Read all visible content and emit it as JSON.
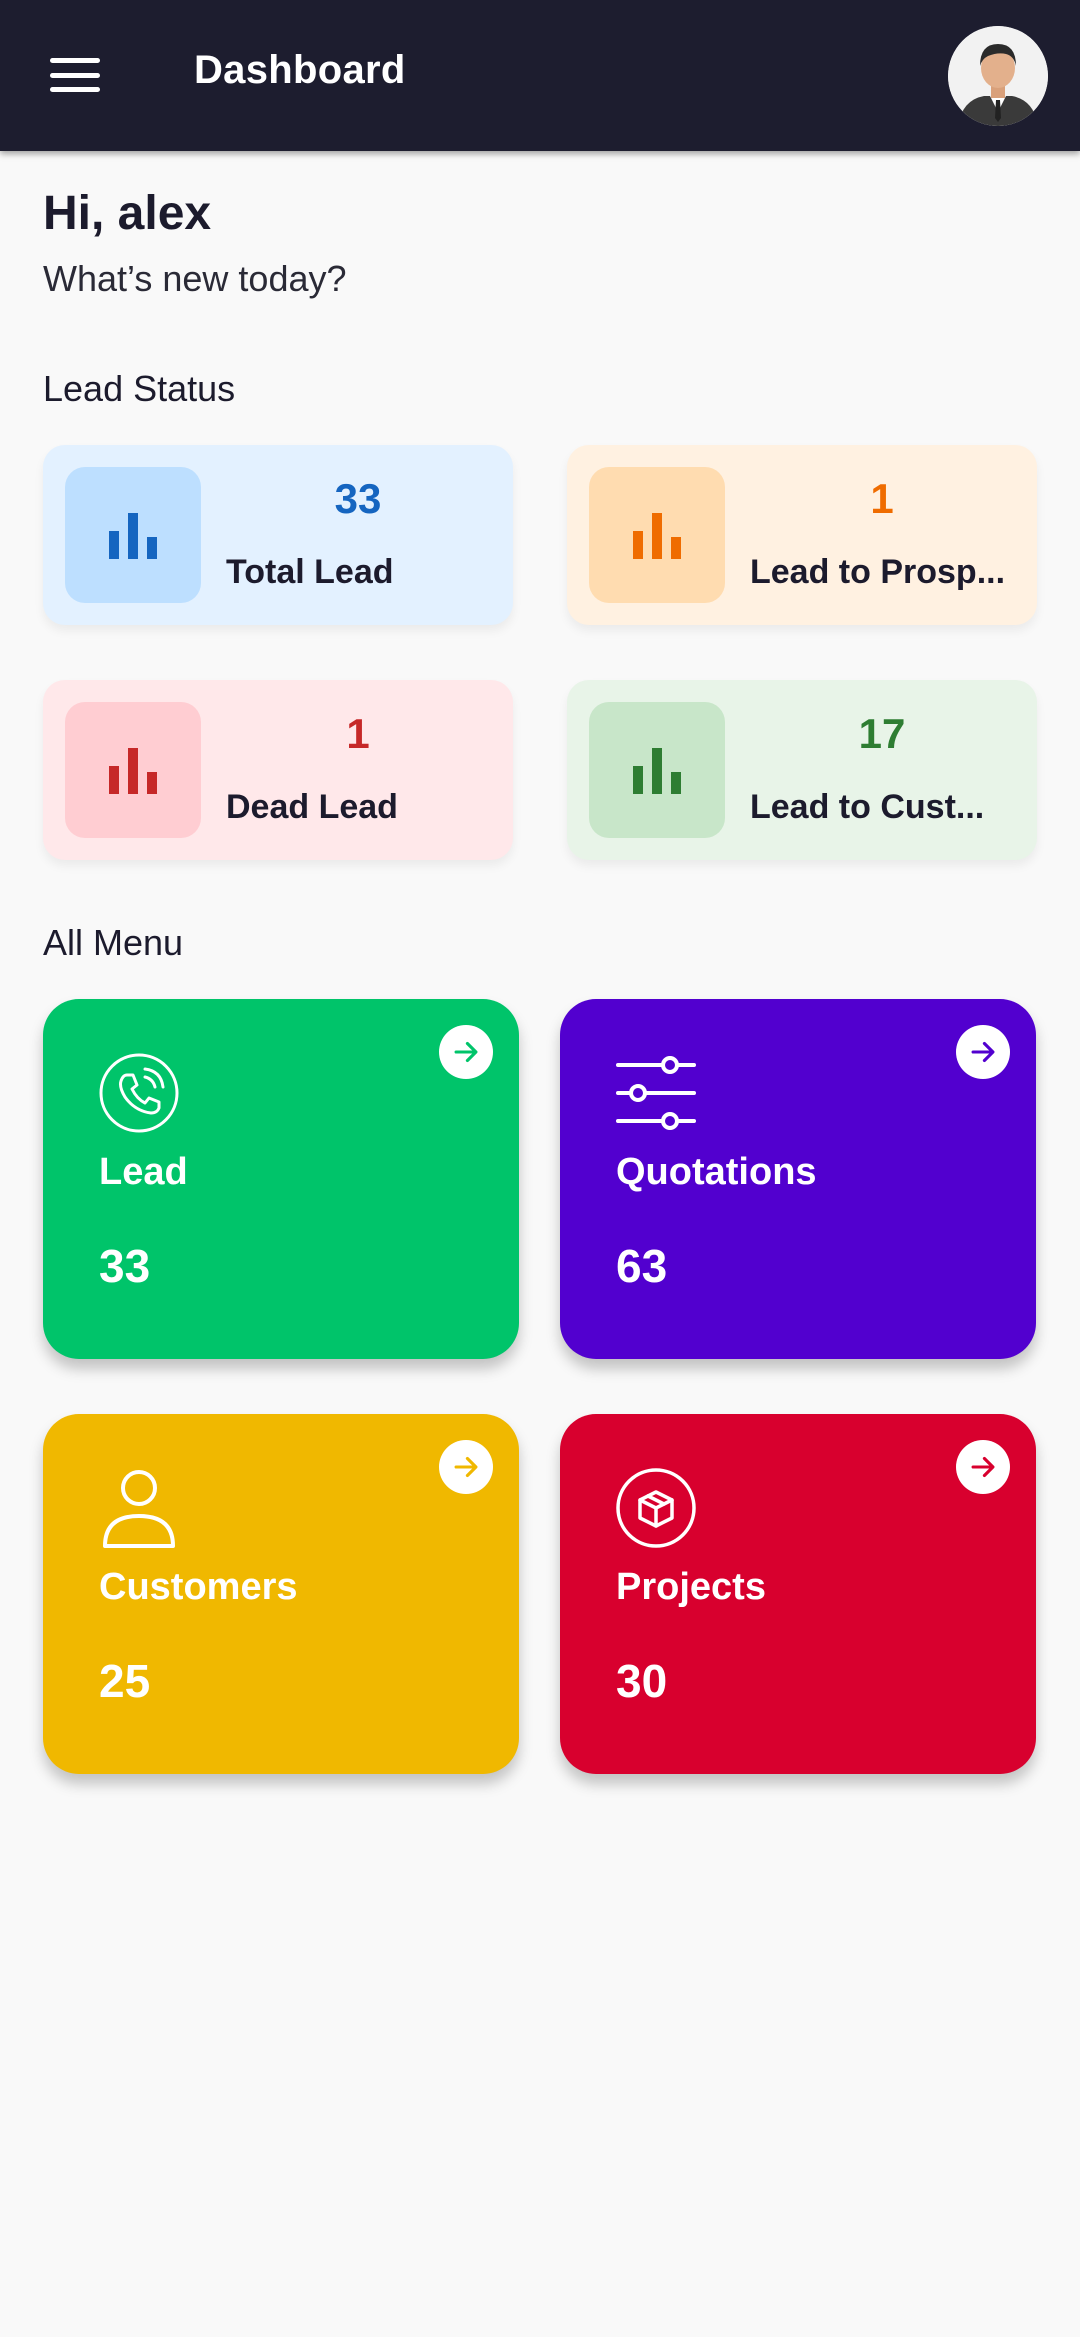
{
  "appbar": {
    "title": "Dashboard",
    "menu_icon": "hamburger-menu-icon",
    "avatar_icon": "user-avatar"
  },
  "greeting": {
    "title": "Hi, alex",
    "subtitle": "What’s new today?"
  },
  "lead_status": {
    "section_title": "Lead Status",
    "cards": [
      {
        "value": "33",
        "label": "Total Lead",
        "icon": "bar-chart-icon",
        "color": "#1565c0",
        "bg": "#e3f1ff",
        "icon_bg": "#bddfff"
      },
      {
        "value": "1",
        "label": "Lead to Prosp...",
        "icon": "bar-chart-icon",
        "color": "#ef6c00",
        "bg": "#fff1e1",
        "icon_bg": "#ffdcb0"
      },
      {
        "value": "1",
        "label": "Dead Lead",
        "icon": "bar-chart-icon",
        "color": "#c62828",
        "bg": "#ffe8ea",
        "icon_bg": "#ffcdd2"
      },
      {
        "value": "17",
        "label": "Lead to Cust...",
        "icon": "bar-chart-icon",
        "color": "#2e7d32",
        "bg": "#e8f4e8",
        "icon_bg": "#c8e6c9"
      }
    ]
  },
  "all_menu": {
    "section_title": "All Menu",
    "tiles": [
      {
        "label": "Lead",
        "count": "33",
        "icon": "phone-icon",
        "color": "#00c46a"
      },
      {
        "label": "Quotations",
        "count": "63",
        "icon": "sliders-icon",
        "color": "#5200cf"
      },
      {
        "label": "Customers",
        "count": "25",
        "icon": "user-icon",
        "color": "#f0b800"
      },
      {
        "label": "Projects",
        "count": "30",
        "icon": "box-icon",
        "color": "#d8002e"
      }
    ]
  }
}
